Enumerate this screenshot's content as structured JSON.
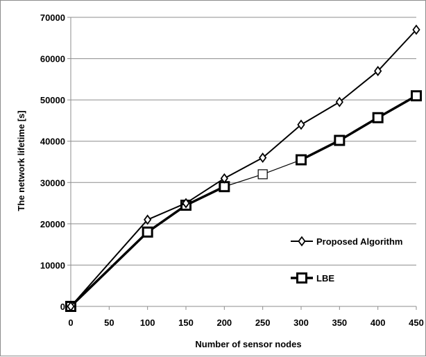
{
  "chart_data": {
    "type": "line",
    "title": "",
    "xlabel": "Number of sensor nodes",
    "ylabel": "The network lifetime [s]",
    "x": [
      0,
      100,
      150,
      200,
      250,
      300,
      350,
      400,
      450
    ],
    "x_ticks": [
      "0",
      "50",
      "100",
      "150",
      "200",
      "250",
      "300",
      "350",
      "400",
      "450"
    ],
    "y_ticks": [
      "0",
      "10000",
      "20000",
      "30000",
      "40000",
      "50000",
      "60000",
      "70000"
    ],
    "xlim": [
      0,
      450
    ],
    "ylim": [
      0,
      70000
    ],
    "x_scale": "categorical-equal-spacing",
    "grid": "horizontal",
    "legend_position": "right",
    "series": [
      {
        "name": "Proposed Algorithm",
        "marker": "diamond",
        "values": [
          0,
          21000,
          25000,
          31000,
          36000,
          44000,
          49500,
          57000,
          67000
        ]
      },
      {
        "name": "LBE",
        "marker": "square",
        "values": [
          0,
          18000,
          24500,
          29000,
          32000,
          35500,
          40200,
          45700,
          51000
        ]
      }
    ]
  }
}
